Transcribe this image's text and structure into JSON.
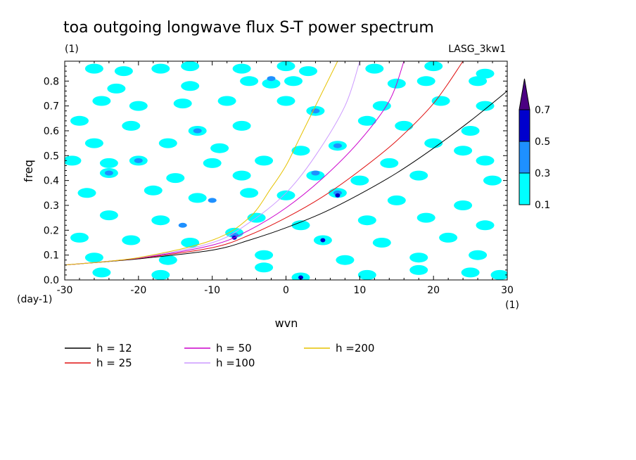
{
  "chart_data": {
    "type": "heatmap",
    "title": "toa outgoing longwave flux S-T power spectrum",
    "subtitle_left": "(1)",
    "subtitle_right": "LASG_3kw1",
    "xlabel": "wvn",
    "ylabel": "freq",
    "x_unit": "(1)",
    "y_unit": "(day-1)",
    "xlim": [
      -30,
      30
    ],
    "ylim": [
      0,
      0.88
    ],
    "x_ticks": [
      -30,
      -20,
      -10,
      0,
      10,
      20,
      30
    ],
    "y_ticks": [
      0.0,
      0.1,
      0.2,
      0.3,
      0.4,
      0.5,
      0.6,
      0.7,
      0.8
    ],
    "y_tick_labels": [
      "0.0",
      "0.1",
      "0.2",
      "0.3",
      "0.4",
      "0.5",
      "0.6",
      "0.7",
      "0.8"
    ],
    "colorbar": {
      "levels": [
        "0.1",
        "0.3",
        "0.5",
        "0.7"
      ],
      "colors": [
        "#00ffff",
        "#1e90ff",
        "#0000cd",
        "#4b0082"
      ]
    },
    "contour_patches": [
      {
        "x": -26,
        "y": 0.85,
        "level": 1
      },
      {
        "x": -22,
        "y": 0.84,
        "level": 1
      },
      {
        "x": -17,
        "y": 0.85,
        "level": 1
      },
      {
        "x": -13,
        "y": 0.86,
        "level": 1
      },
      {
        "x": -6,
        "y": 0.85,
        "level": 1
      },
      {
        "x": 0,
        "y": 0.86,
        "level": 1
      },
      {
        "x": 3,
        "y": 0.84,
        "level": 1
      },
      {
        "x": 12,
        "y": 0.85,
        "level": 1
      },
      {
        "x": 20,
        "y": 0.86,
        "level": 1
      },
      {
        "x": 27,
        "y": 0.83,
        "level": 1
      },
      {
        "x": -23,
        "y": 0.77,
        "level": 1
      },
      {
        "x": -13,
        "y": 0.78,
        "level": 1
      },
      {
        "x": -5,
        "y": 0.8,
        "level": 1
      },
      {
        "x": -2,
        "y": 0.79,
        "level": 1
      },
      {
        "x": 1,
        "y": 0.8,
        "level": 1
      },
      {
        "x": -2,
        "y": 0.81,
        "level": 2
      },
      {
        "x": 15,
        "y": 0.79,
        "level": 1
      },
      {
        "x": 19,
        "y": 0.8,
        "level": 1
      },
      {
        "x": 26,
        "y": 0.8,
        "level": 1
      },
      {
        "x": -25,
        "y": 0.72,
        "level": 1
      },
      {
        "x": -20,
        "y": 0.7,
        "level": 1
      },
      {
        "x": -14,
        "y": 0.71,
        "level": 1
      },
      {
        "x": -8,
        "y": 0.72,
        "level": 1
      },
      {
        "x": 0,
        "y": 0.72,
        "level": 1
      },
      {
        "x": 4,
        "y": 0.68,
        "level": 1
      },
      {
        "x": 4,
        "y": 0.68,
        "level": 2
      },
      {
        "x": 13,
        "y": 0.7,
        "level": 1
      },
      {
        "x": 21,
        "y": 0.72,
        "level": 1
      },
      {
        "x": 27,
        "y": 0.7,
        "level": 1
      },
      {
        "x": -28,
        "y": 0.64,
        "level": 1
      },
      {
        "x": -21,
        "y": 0.62,
        "level": 1
      },
      {
        "x": -12,
        "y": 0.6,
        "level": 1
      },
      {
        "x": -12,
        "y": 0.6,
        "level": 2
      },
      {
        "x": -6,
        "y": 0.62,
        "level": 1
      },
      {
        "x": 11,
        "y": 0.64,
        "level": 1
      },
      {
        "x": 16,
        "y": 0.62,
        "level": 1
      },
      {
        "x": 25,
        "y": 0.6,
        "level": 1
      },
      {
        "x": -26,
        "y": 0.55,
        "level": 1
      },
      {
        "x": -16,
        "y": 0.55,
        "level": 1
      },
      {
        "x": -9,
        "y": 0.53,
        "level": 1
      },
      {
        "x": 2,
        "y": 0.52,
        "level": 1
      },
      {
        "x": 7,
        "y": 0.54,
        "level": 1
      },
      {
        "x": 7,
        "y": 0.54,
        "level": 2
      },
      {
        "x": 20,
        "y": 0.55,
        "level": 1
      },
      {
        "x": 24,
        "y": 0.52,
        "level": 1
      },
      {
        "x": -29,
        "y": 0.48,
        "level": 1
      },
      {
        "x": -24,
        "y": 0.47,
        "level": 1
      },
      {
        "x": -20,
        "y": 0.48,
        "level": 1
      },
      {
        "x": -20,
        "y": 0.48,
        "level": 2
      },
      {
        "x": -10,
        "y": 0.47,
        "level": 1
      },
      {
        "x": -3,
        "y": 0.48,
        "level": 1
      },
      {
        "x": 14,
        "y": 0.47,
        "level": 1
      },
      {
        "x": 27,
        "y": 0.48,
        "level": 1
      },
      {
        "x": -24,
        "y": 0.43,
        "level": 1
      },
      {
        "x": -24,
        "y": 0.43,
        "level": 2
      },
      {
        "x": -15,
        "y": 0.41,
        "level": 1
      },
      {
        "x": -6,
        "y": 0.42,
        "level": 1
      },
      {
        "x": 4,
        "y": 0.42,
        "level": 1
      },
      {
        "x": 4,
        "y": 0.43,
        "level": 2
      },
      {
        "x": 10,
        "y": 0.4,
        "level": 1
      },
      {
        "x": 18,
        "y": 0.42,
        "level": 1
      },
      {
        "x": 28,
        "y": 0.4,
        "level": 1
      },
      {
        "x": -27,
        "y": 0.35,
        "level": 1
      },
      {
        "x": -18,
        "y": 0.36,
        "level": 1
      },
      {
        "x": -12,
        "y": 0.33,
        "level": 1
      },
      {
        "x": -10,
        "y": 0.32,
        "level": 2
      },
      {
        "x": -5,
        "y": 0.35,
        "level": 1
      },
      {
        "x": 0,
        "y": 0.34,
        "level": 1
      },
      {
        "x": 7,
        "y": 0.35,
        "level": 1
      },
      {
        "x": 7,
        "y": 0.35,
        "level": 2
      },
      {
        "x": 7,
        "y": 0.34,
        "level": 3
      },
      {
        "x": 15,
        "y": 0.32,
        "level": 1
      },
      {
        "x": 24,
        "y": 0.3,
        "level": 1
      },
      {
        "x": -24,
        "y": 0.26,
        "level": 1
      },
      {
        "x": -17,
        "y": 0.24,
        "level": 1
      },
      {
        "x": -14,
        "y": 0.22,
        "level": 2
      },
      {
        "x": -4,
        "y": 0.25,
        "level": 1
      },
      {
        "x": 2,
        "y": 0.22,
        "level": 1
      },
      {
        "x": 11,
        "y": 0.24,
        "level": 1
      },
      {
        "x": 19,
        "y": 0.25,
        "level": 1
      },
      {
        "x": 27,
        "y": 0.22,
        "level": 1
      },
      {
        "x": -28,
        "y": 0.17,
        "level": 1
      },
      {
        "x": -21,
        "y": 0.16,
        "level": 1
      },
      {
        "x": -13,
        "y": 0.15,
        "level": 1
      },
      {
        "x": -7,
        "y": 0.19,
        "level": 1
      },
      {
        "x": -7,
        "y": 0.18,
        "level": 2
      },
      {
        "x": -7,
        "y": 0.17,
        "level": 3
      },
      {
        "x": 5,
        "y": 0.16,
        "level": 1
      },
      {
        "x": 5,
        "y": 0.16,
        "level": 3
      },
      {
        "x": 13,
        "y": 0.15,
        "level": 1
      },
      {
        "x": 22,
        "y": 0.17,
        "level": 1
      },
      {
        "x": -26,
        "y": 0.09,
        "level": 1
      },
      {
        "x": -16,
        "y": 0.08,
        "level": 1
      },
      {
        "x": -3,
        "y": 0.1,
        "level": 1
      },
      {
        "x": 8,
        "y": 0.08,
        "level": 1
      },
      {
        "x": 18,
        "y": 0.09,
        "level": 1
      },
      {
        "x": 26,
        "y": 0.1,
        "level": 1
      },
      {
        "x": -25,
        "y": 0.03,
        "level": 1
      },
      {
        "x": -17,
        "y": 0.02,
        "level": 1
      },
      {
        "x": -3,
        "y": 0.05,
        "level": 1
      },
      {
        "x": 2,
        "y": 0.01,
        "level": 1
      },
      {
        "x": 2,
        "y": 0.01,
        "level": 3
      },
      {
        "x": 11,
        "y": 0.02,
        "level": 1
      },
      {
        "x": 18,
        "y": 0.04,
        "level": 1
      },
      {
        "x": 25,
        "y": 0.03,
        "level": 1
      },
      {
        "x": 29,
        "y": 0.02,
        "level": 1
      }
    ],
    "series": [
      {
        "name": "h = 12",
        "color": "#000000",
        "points": [
          [
            -30,
            0.06
          ],
          [
            -20,
            0.085
          ],
          [
            -10,
            0.12
          ],
          [
            -5,
            0.16
          ],
          [
            0,
            0.21
          ],
          [
            5,
            0.27
          ],
          [
            10,
            0.345
          ],
          [
            15,
            0.43
          ],
          [
            20,
            0.53
          ],
          [
            25,
            0.64
          ],
          [
            30,
            0.76
          ]
        ]
      },
      {
        "name": "h = 25",
        "color": "#e01010",
        "points": [
          [
            -30,
            0.06
          ],
          [
            -20,
            0.087
          ],
          [
            -10,
            0.13
          ],
          [
            -5,
            0.18
          ],
          [
            0,
            0.25
          ],
          [
            5,
            0.335
          ],
          [
            10,
            0.44
          ],
          [
            15,
            0.56
          ],
          [
            20,
            0.71
          ],
          [
            24,
            0.88
          ]
        ]
      },
      {
        "name": "h = 50",
        "color": "#cc00cc",
        "points": [
          [
            -30,
            0.06
          ],
          [
            -20,
            0.088
          ],
          [
            -10,
            0.14
          ],
          [
            -5,
            0.2
          ],
          [
            0,
            0.29
          ],
          [
            5,
            0.41
          ],
          [
            10,
            0.56
          ],
          [
            14,
            0.72
          ],
          [
            16,
            0.88
          ]
        ]
      },
      {
        "name": "h =100",
        "color": "#cc99ff",
        "points": [
          [
            -30,
            0.06
          ],
          [
            -20,
            0.089
          ],
          [
            -10,
            0.15
          ],
          [
            -5,
            0.23
          ],
          [
            0,
            0.35
          ],
          [
            4,
            0.5
          ],
          [
            8,
            0.7
          ],
          [
            10,
            0.88
          ]
        ]
      },
      {
        "name": "h =200",
        "color": "#e6c200",
        "points": [
          [
            -30,
            0.06
          ],
          [
            -20,
            0.09
          ],
          [
            -10,
            0.16
          ],
          [
            -5,
            0.25
          ],
          [
            -2,
            0.37
          ],
          [
            0,
            0.46
          ],
          [
            2,
            0.58
          ],
          [
            5,
            0.76
          ],
          [
            7,
            0.88
          ]
        ]
      }
    ]
  }
}
